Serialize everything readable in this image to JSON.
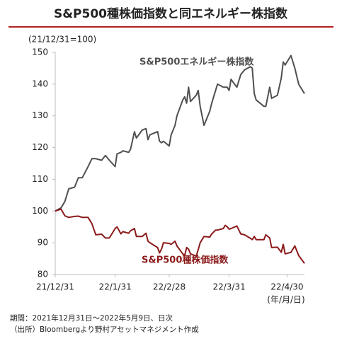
{
  "chart_data": {
    "type": "line",
    "title": "S&P500種株価指数と同エネルギー株指数",
    "subtitle": "(21/12/31=100)",
    "x_label": "(年/月/日)",
    "notes": [
      "期間：2021年12月31日～2022年5月9日、日次",
      "（出所）Bloombergより野村アセットマネジメント作成"
    ],
    "x": [
      "21/12/31",
      "22/1/3",
      "22/1/5",
      "22/1/7",
      "22/1/10",
      "22/1/12",
      "22/1/14",
      "22/1/17",
      "22/1/19",
      "22/1/21",
      "22/1/24",
      "22/1/26",
      "22/1/28",
      "22/1/31",
      "22/2/1",
      "22/2/3",
      "22/2/4",
      "22/2/7",
      "22/2/8",
      "22/2/10",
      "22/2/11",
      "22/2/14",
      "22/2/16",
      "22/2/17",
      "22/2/18",
      "22/2/22",
      "22/2/23",
      "22/2/24",
      "22/2/25",
      "22/2/28",
      "22/3/1",
      "22/3/3",
      "22/3/4",
      "22/3/7",
      "22/3/8",
      "22/3/9",
      "22/3/10",
      "22/3/11",
      "22/3/14",
      "22/3/15",
      "22/3/16",
      "22/3/17",
      "22/3/18",
      "22/3/21",
      "22/3/22",
      "22/3/24",
      "22/3/25",
      "22/3/28",
      "22/3/29",
      "22/3/30",
      "22/3/31",
      "22/4/1",
      "22/4/4",
      "22/4/6",
      "22/4/8",
      "22/4/11",
      "22/4/12",
      "22/4/13",
      "22/4/14",
      "22/4/18",
      "22/4/19",
      "22/4/21",
      "22/4/22",
      "22/4/25",
      "22/4/27",
      "22/4/28",
      "22/4/29",
      "22/5/2",
      "22/5/4",
      "22/5/6",
      "22/5/9"
    ],
    "series": [
      {
        "name": "S&P500エネルギー株指数",
        "color": "#505050",
        "values": [
          100,
          101,
          103,
          107,
          107.5,
          110.5,
          110.5,
          114,
          116.5,
          116.5,
          116,
          117.5,
          116,
          114,
          118,
          118.5,
          119,
          118.5,
          119.5,
          125,
          123,
          125.5,
          126,
          122.5,
          124,
          125,
          122,
          121.5,
          122,
          120.5,
          124,
          127,
          130,
          135,
          136,
          134,
          139,
          134.5,
          136.5,
          138,
          133,
          130,
          127,
          131.5,
          134,
          138,
          140,
          139,
          139,
          139,
          138,
          141.5,
          139,
          143,
          144.5,
          145.5,
          145,
          137,
          135,
          133,
          133,
          139,
          135.5,
          136.5,
          142,
          147,
          146,
          149,
          145,
          140,
          137
        ]
      },
      {
        "name": "S&P500種株価指数",
        "color": "#8b1a1a",
        "values": [
          100,
          100.6,
          98.5,
          98,
          98.3,
          98.4,
          98,
          98,
          96,
          92.5,
          92.7,
          91.5,
          91.5,
          94.5,
          95,
          92.8,
          93.5,
          93,
          93.8,
          94.5,
          92,
          92,
          93,
          90.5,
          90,
          88.5,
          86.8,
          88,
          90,
          89.8,
          89.5,
          90.5,
          89,
          86.5,
          86,
          88.5,
          88,
          86.5,
          85.8,
          87.8,
          90,
          91,
          92,
          91.8,
          92.8,
          94,
          94,
          94.5,
          95.5,
          95,
          94.3,
          94.5,
          95.3,
          92.8,
          92.5,
          91.4,
          91,
          92,
          91,
          91,
          92.5,
          91.5,
          88.5,
          88.6,
          87,
          89.5,
          86.5,
          87,
          89,
          86,
          83.5
        ]
      }
    ],
    "xlim": [
      "21/12/31",
      "22/5/9"
    ],
    "xticks": [
      "21/12/31",
      "22/1/31",
      "22/2/28",
      "22/3/31",
      "22/4/30"
    ],
    "ylim": [
      80,
      150
    ],
    "yticks": [
      80,
      90,
      100,
      110,
      120,
      130,
      140,
      150
    ],
    "grid": false
  }
}
